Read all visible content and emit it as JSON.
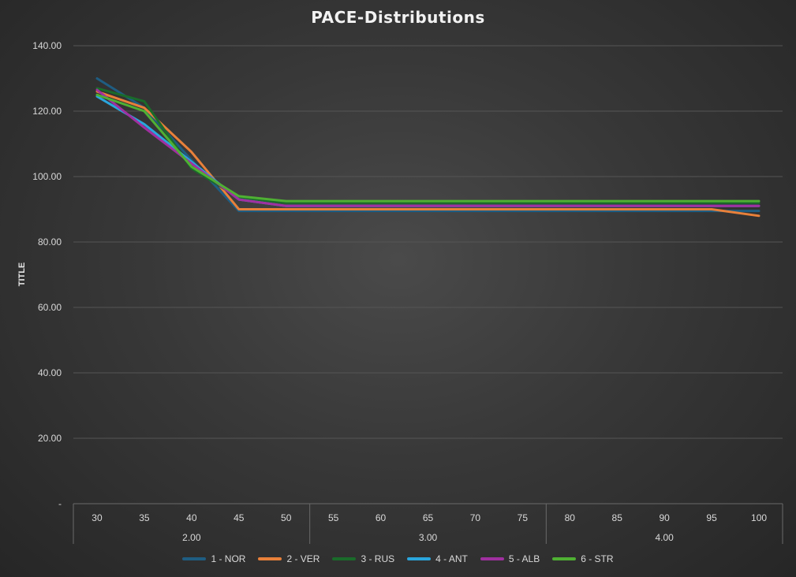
{
  "chart_data": {
    "type": "line",
    "title": "PACE-Distributions",
    "xlabel": "",
    "ylabel": "TITLE",
    "ylim": [
      0,
      140
    ],
    "y_ticks": [
      "-",
      "20.00",
      "40.00",
      "60.00",
      "80.00",
      "100.00",
      "120.00",
      "140.00"
    ],
    "categories": [
      "30",
      "35",
      "40",
      "45",
      "50",
      "55",
      "60",
      "65",
      "70",
      "75",
      "80",
      "85",
      "90",
      "95",
      "100"
    ],
    "groups": [
      {
        "label": "2.00",
        "span": 5
      },
      {
        "label": "3.00",
        "span": 5
      },
      {
        "label": "4.00",
        "span": 5
      }
    ],
    "grid": true,
    "legend_position": "bottom",
    "series": [
      {
        "name": "1 - NOR",
        "color": "#1f5d82",
        "values": [
          130,
          121,
          105,
          89.5,
          89.5,
          89.5,
          89.5,
          89.5,
          89.5,
          89.5,
          89.5,
          89.5,
          89.5,
          89.5,
          89.5
        ]
      },
      {
        "name": "2 - VER",
        "color": "#e8803a",
        "values": [
          126,
          121,
          107.5,
          90,
          90,
          90,
          90,
          90,
          90,
          90,
          90,
          90,
          90,
          90,
          88
        ]
      },
      {
        "name": "3 - RUS",
        "color": "#1a6b2a",
        "values": [
          127,
          123,
          102.5,
          93.5,
          92,
          92,
          92,
          92,
          92,
          92,
          92,
          92,
          92,
          92,
          92
        ]
      },
      {
        "name": "4 - ANT",
        "color": "#2aa6dd",
        "values": [
          124.5,
          116,
          104.5,
          93,
          91,
          91,
          91,
          91,
          91,
          91,
          91,
          91,
          91,
          91,
          91
        ]
      },
      {
        "name": "5 - ALB",
        "color": "#a030a0",
        "values": [
          126.5,
          115,
          104,
          93,
          91,
          91,
          91,
          91,
          91,
          91,
          91,
          91,
          91,
          91,
          91
        ]
      },
      {
        "name": "6 - STR",
        "color": "#4fb033",
        "values": [
          125,
          120,
          103,
          94,
          92.5,
          92.5,
          92.5,
          92.5,
          92.5,
          92.5,
          92.5,
          92.5,
          92.5,
          92.5,
          92.5
        ]
      }
    ]
  }
}
